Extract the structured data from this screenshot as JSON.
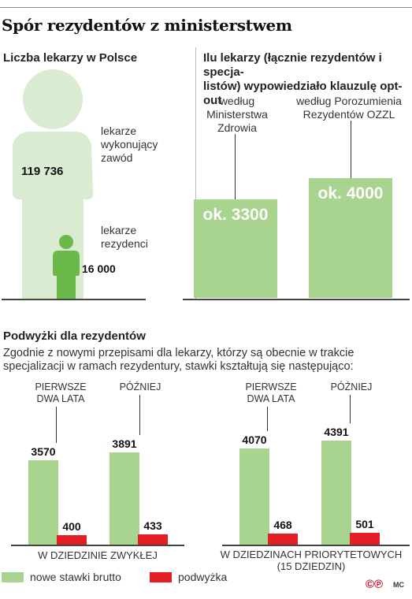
{
  "title": "Spór rezydentów z ministerstwem",
  "panel_doctors": {
    "heading": "Liczba lekarzy w Polsce",
    "total_label": "lekarze wykonujący zawód",
    "total_label_lines": [
      "lekarze",
      "wykonujący",
      "zawód"
    ],
    "total_value": "119 736",
    "residents_label_lines": [
      "lekarze",
      "rezydenci"
    ],
    "residents_value": "16 000",
    "colors": {
      "total": "#d9ebd0",
      "residents": "#6bb84b"
    }
  },
  "panel_optout": {
    "heading_lines": [
      "Ilu lekarzy (łącznie rezydentów i specja-",
      "listów) wypowiedziało klauzulę opt-out"
    ]
  },
  "panel_raises": {
    "heading": "Podwyżki dla rezydentów",
    "description_lines": [
      "Zgodnie z nowymi przepisami dla lekarzy, którzy są obecnie w trakcie",
      "specjalizacji w ramach rezydentury, stawki kształtują się następująco:"
    ]
  },
  "footer": {
    "copyright": "©℗",
    "credit": "MC"
  },
  "chart_data": [
    {
      "type": "bar",
      "title": "Ilu lekarzy (łącznie rezydentów i specjalistów) wypowiedziało klauzulę opt-out",
      "categories": [
        "według Ministerstwa Zdrowia",
        "według Porozumienia Rezydentów OZZL"
      ],
      "category_label_lines": [
        [
          "według",
          "Ministerstwa",
          "Zdrowia"
        ],
        [
          "według Porozumienia",
          "Rezydentów OZZL"
        ]
      ],
      "values": [
        3300,
        4000
      ],
      "value_labels": [
        "ok. 3300",
        "ok. 4000"
      ],
      "ylim": [
        0,
        4800
      ],
      "color": "#a8d490",
      "grid": false
    },
    {
      "type": "bar",
      "title": "Podwyżki dla rezydentów",
      "groups": [
        {
          "label": "W DZIEDZINIE ZWYKŁEJ",
          "label_lines": [
            "W DZIEDZINIE ZWYKŁEJ"
          ],
          "periods": [
            {
              "label_lines": [
                "PIERWSZE",
                "DWA LATA"
              ],
              "gross": 3570,
              "raise": 400
            },
            {
              "label_lines": [
                "PÓŹNIEJ"
              ],
              "gross": 3891,
              "raise": 433
            }
          ]
        },
        {
          "label": "W DZIEDZINACH PRIORYTETOWYCH (15 DZIEDZIN)",
          "label_lines": [
            "W DZIEDZINACH PRIORYTETOWYCH",
            "(15 DZIEDZIN)"
          ],
          "periods": [
            {
              "label_lines": [
                "PIERWSZE",
                "DWA LATA"
              ],
              "gross": 4070,
              "raise": 468
            },
            {
              "label_lines": [
                "PÓŹNIEJ"
              ],
              "gross": 4391,
              "raise": 501
            }
          ]
        }
      ],
      "series": [
        {
          "name": "nowe stawki brutto",
          "key": "gross",
          "color": "#a8d490"
        },
        {
          "name": "podwyżka",
          "key": "raise",
          "color": "#e31e24"
        }
      ],
      "ylim": [
        0,
        5000
      ],
      "legend_position": "bottom-left",
      "grid": false
    }
  ]
}
